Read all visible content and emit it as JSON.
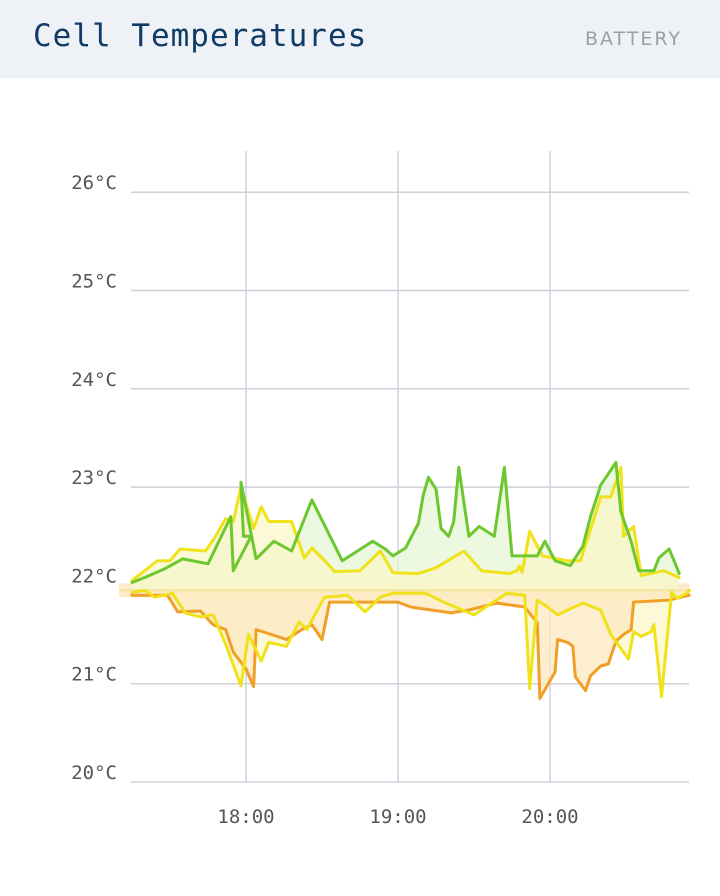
{
  "header": {
    "title": "Cell Temperatures",
    "tag": "BATTERY"
  },
  "chart_data": {
    "type": "area",
    "y_unit": "°C",
    "ylim": [
      20,
      26.1
    ],
    "y_ticks": [
      "20°C",
      "21°C",
      "22°C",
      "23°C",
      "24°C",
      "25°C",
      "26°C"
    ],
    "y_tick_values": [
      20,
      21,
      22,
      23,
      24,
      25,
      26
    ],
    "x_range": [
      "17:15",
      "20:55"
    ],
    "x_ticks": [
      "18:00",
      "19:00",
      "20:00"
    ],
    "baseline": 21.95,
    "grid": true,
    "colors": {
      "green": "#6dc72e",
      "yellow": "#f0e21a",
      "orange": "#f0a028",
      "green_fill": "#e6f5d4",
      "yellow_fill": "#fbf7c8",
      "orange_fill": "#fde8c0",
      "baseline": "#f3e29a",
      "grid": "#cfd0db"
    },
    "series": [
      {
        "color_key": "green",
        "points": [
          [
            "17:15",
            22.03
          ],
          [
            "17:20",
            22.08
          ],
          [
            "17:28",
            22.17
          ],
          [
            "17:35",
            22.27
          ],
          [
            "17:45",
            22.22
          ],
          [
            "17:54",
            22.7
          ],
          [
            "17:55",
            22.15
          ],
          [
            "17:58",
            22.3
          ],
          [
            "18:02",
            22.5
          ],
          [
            "17:59",
            22.5
          ],
          [
            "17:58",
            23.05
          ],
          [
            "18:04",
            22.27
          ],
          [
            "18:11",
            22.45
          ],
          [
            "18:18",
            22.35
          ],
          [
            "18:26",
            22.87
          ],
          [
            "18:38",
            22.25
          ],
          [
            "18:50",
            22.45
          ],
          [
            "18:55",
            22.37
          ],
          [
            "18:58",
            22.3
          ],
          [
            "19:03",
            22.38
          ],
          [
            "19:08",
            22.63
          ],
          [
            "19:10",
            22.92
          ],
          [
            "19:12",
            23.1
          ],
          [
            "19:15",
            22.98
          ],
          [
            "19:17",
            22.58
          ],
          [
            "19:20",
            22.5
          ],
          [
            "19:22",
            22.65
          ],
          [
            "19:24",
            23.2
          ],
          [
            "19:28",
            22.5
          ],
          [
            "19:32",
            22.6
          ],
          [
            "19:38",
            22.5
          ],
          [
            "19:42",
            23.2
          ],
          [
            "19:45",
            22.3
          ],
          [
            "19:48",
            22.3
          ],
          [
            "19:55",
            22.3
          ],
          [
            "19:58",
            22.45
          ],
          [
            "20:02",
            22.25
          ],
          [
            "20:08",
            22.2
          ],
          [
            "20:13",
            22.4
          ],
          [
            "20:16",
            22.7
          ],
          [
            "20:20",
            23.02
          ],
          [
            "20:26",
            23.25
          ],
          [
            "20:28",
            22.75
          ],
          [
            "20:32",
            22.45
          ],
          [
            "20:35",
            22.15
          ],
          [
            "20:41",
            22.15
          ],
          [
            "20:43",
            22.28
          ],
          [
            "20:47",
            22.37
          ],
          [
            "20:49",
            22.25
          ],
          [
            "20:51",
            22.12
          ]
        ]
      },
      {
        "color_key": "yellow",
        "points": [
          [
            "17:15",
            22.05
          ],
          [
            "17:20",
            22.15
          ],
          [
            "17:25",
            22.25
          ],
          [
            "17:30",
            22.25
          ],
          [
            "17:34",
            22.37
          ],
          [
            "17:44",
            22.35
          ],
          [
            "17:48",
            22.5
          ],
          [
            "17:52",
            22.68
          ],
          [
            "17:55",
            22.65
          ],
          [
            "17:58",
            23.0
          ],
          [
            "18:03",
            22.58
          ],
          [
            "18:06",
            22.8
          ],
          [
            "18:09",
            22.65
          ],
          [
            "18:13",
            22.65
          ],
          [
            "18:18",
            22.65
          ],
          [
            "18:23",
            22.28
          ],
          [
            "18:26",
            22.38
          ],
          [
            "18:30",
            22.28
          ],
          [
            "18:35",
            22.14
          ],
          [
            "18:45",
            22.15
          ],
          [
            "18:53",
            22.35
          ],
          [
            "18:58",
            22.13
          ],
          [
            "19:08",
            22.12
          ],
          [
            "19:15",
            22.18
          ],
          [
            "19:26",
            22.35
          ],
          [
            "19:33",
            22.15
          ],
          [
            "19:40",
            22.13
          ],
          [
            "19:44",
            22.12
          ],
          [
            "19:47",
            22.15
          ],
          [
            "19:48",
            22.2
          ],
          [
            "19:49",
            22.13
          ],
          [
            "19:52",
            22.55
          ],
          [
            "19:57",
            22.3
          ],
          [
            "20:07",
            22.25
          ],
          [
            "20:12",
            22.25
          ],
          [
            "20:17",
            22.65
          ],
          [
            "20:20",
            22.9
          ],
          [
            "20:24",
            22.9
          ],
          [
            "20:28",
            23.2
          ],
          [
            "20:29",
            22.5
          ],
          [
            "20:33",
            22.6
          ],
          [
            "20:36",
            22.1
          ],
          [
            "20:45",
            22.15
          ],
          [
            "20:51",
            22.08
          ]
        ]
      },
      {
        "color_key": "yellow",
        "points": [
          [
            "17:15",
            21.93
          ],
          [
            "17:20",
            21.95
          ],
          [
            "17:24",
            21.88
          ],
          [
            "17:31",
            21.92
          ],
          [
            "17:36",
            21.72
          ],
          [
            "17:42",
            21.68
          ],
          [
            "17:47",
            21.7
          ],
          [
            "17:52",
            21.4
          ],
          [
            "17:58",
            20.98
          ],
          [
            "18:01",
            21.5
          ],
          [
            "18:06",
            21.23
          ],
          [
            "18:09",
            21.42
          ],
          [
            "18:16",
            21.38
          ],
          [
            "18:21",
            21.63
          ],
          [
            "18:24",
            21.55
          ],
          [
            "18:31",
            21.88
          ],
          [
            "18:40",
            21.9
          ],
          [
            "18:47",
            21.73
          ],
          [
            "18:53",
            21.88
          ],
          [
            "18:58",
            21.92
          ],
          [
            "19:11",
            21.92
          ],
          [
            "19:18",
            21.83
          ],
          [
            "19:30",
            21.7
          ],
          [
            "19:43",
            21.92
          ],
          [
            "19:50",
            21.9
          ],
          [
            "19:52",
            20.95
          ],
          [
            "19:55",
            21.85
          ],
          [
            "19:58",
            21.8
          ],
          [
            "20:03",
            21.7
          ],
          [
            "20:07",
            21.75
          ],
          [
            "20:13",
            21.82
          ],
          [
            "20:20",
            21.75
          ],
          [
            "20:24",
            21.5
          ],
          [
            "20:31",
            21.25
          ],
          [
            "20:33",
            21.53
          ],
          [
            "20:36",
            21.48
          ],
          [
            "20:40",
            21.53
          ],
          [
            "20:41",
            21.6
          ],
          [
            "20:44",
            20.87
          ],
          [
            "20:48",
            21.93
          ],
          [
            "20:50",
            21.87
          ],
          [
            "20:54",
            21.92
          ],
          [
            "20:55",
            21.95
          ]
        ]
      },
      {
        "color_key": "orange",
        "points": [
          [
            "17:15",
            21.9
          ],
          [
            "17:29",
            21.9
          ],
          [
            "17:33",
            21.73
          ],
          [
            "17:42",
            21.74
          ],
          [
            "17:47",
            21.6
          ],
          [
            "17:52",
            21.55
          ],
          [
            "17:55",
            21.32
          ],
          [
            "18:00",
            21.15
          ],
          [
            "18:03",
            20.97
          ],
          [
            "18:04",
            21.55
          ],
          [
            "18:10",
            21.5
          ],
          [
            "18:16",
            21.45
          ],
          [
            "18:22",
            21.55
          ],
          [
            "18:26",
            21.6
          ],
          [
            "18:30",
            21.45
          ],
          [
            "18:33",
            21.83
          ],
          [
            "18:40",
            21.83
          ],
          [
            "18:52",
            21.83
          ],
          [
            "19:00",
            21.83
          ],
          [
            "19:05",
            21.78
          ],
          [
            "19:21",
            21.72
          ],
          [
            "19:28",
            21.75
          ],
          [
            "19:39",
            21.82
          ],
          [
            "19:50",
            21.78
          ],
          [
            "19:55",
            21.62
          ],
          [
            "19:56",
            20.85
          ],
          [
            "20:02",
            21.12
          ],
          [
            "20:03",
            21.45
          ],
          [
            "20:07",
            21.42
          ],
          [
            "20:09",
            21.38
          ],
          [
            "20:10",
            21.07
          ],
          [
            "20:14",
            20.93
          ],
          [
            "20:16",
            21.08
          ],
          [
            "20:20",
            21.18
          ],
          [
            "20:23",
            21.2
          ],
          [
            "20:26",
            21.43
          ],
          [
            "20:29",
            21.5
          ],
          [
            "20:32",
            21.55
          ],
          [
            "20:33",
            21.83
          ],
          [
            "20:47",
            21.85
          ],
          [
            "20:55",
            21.9
          ]
        ]
      }
    ]
  }
}
